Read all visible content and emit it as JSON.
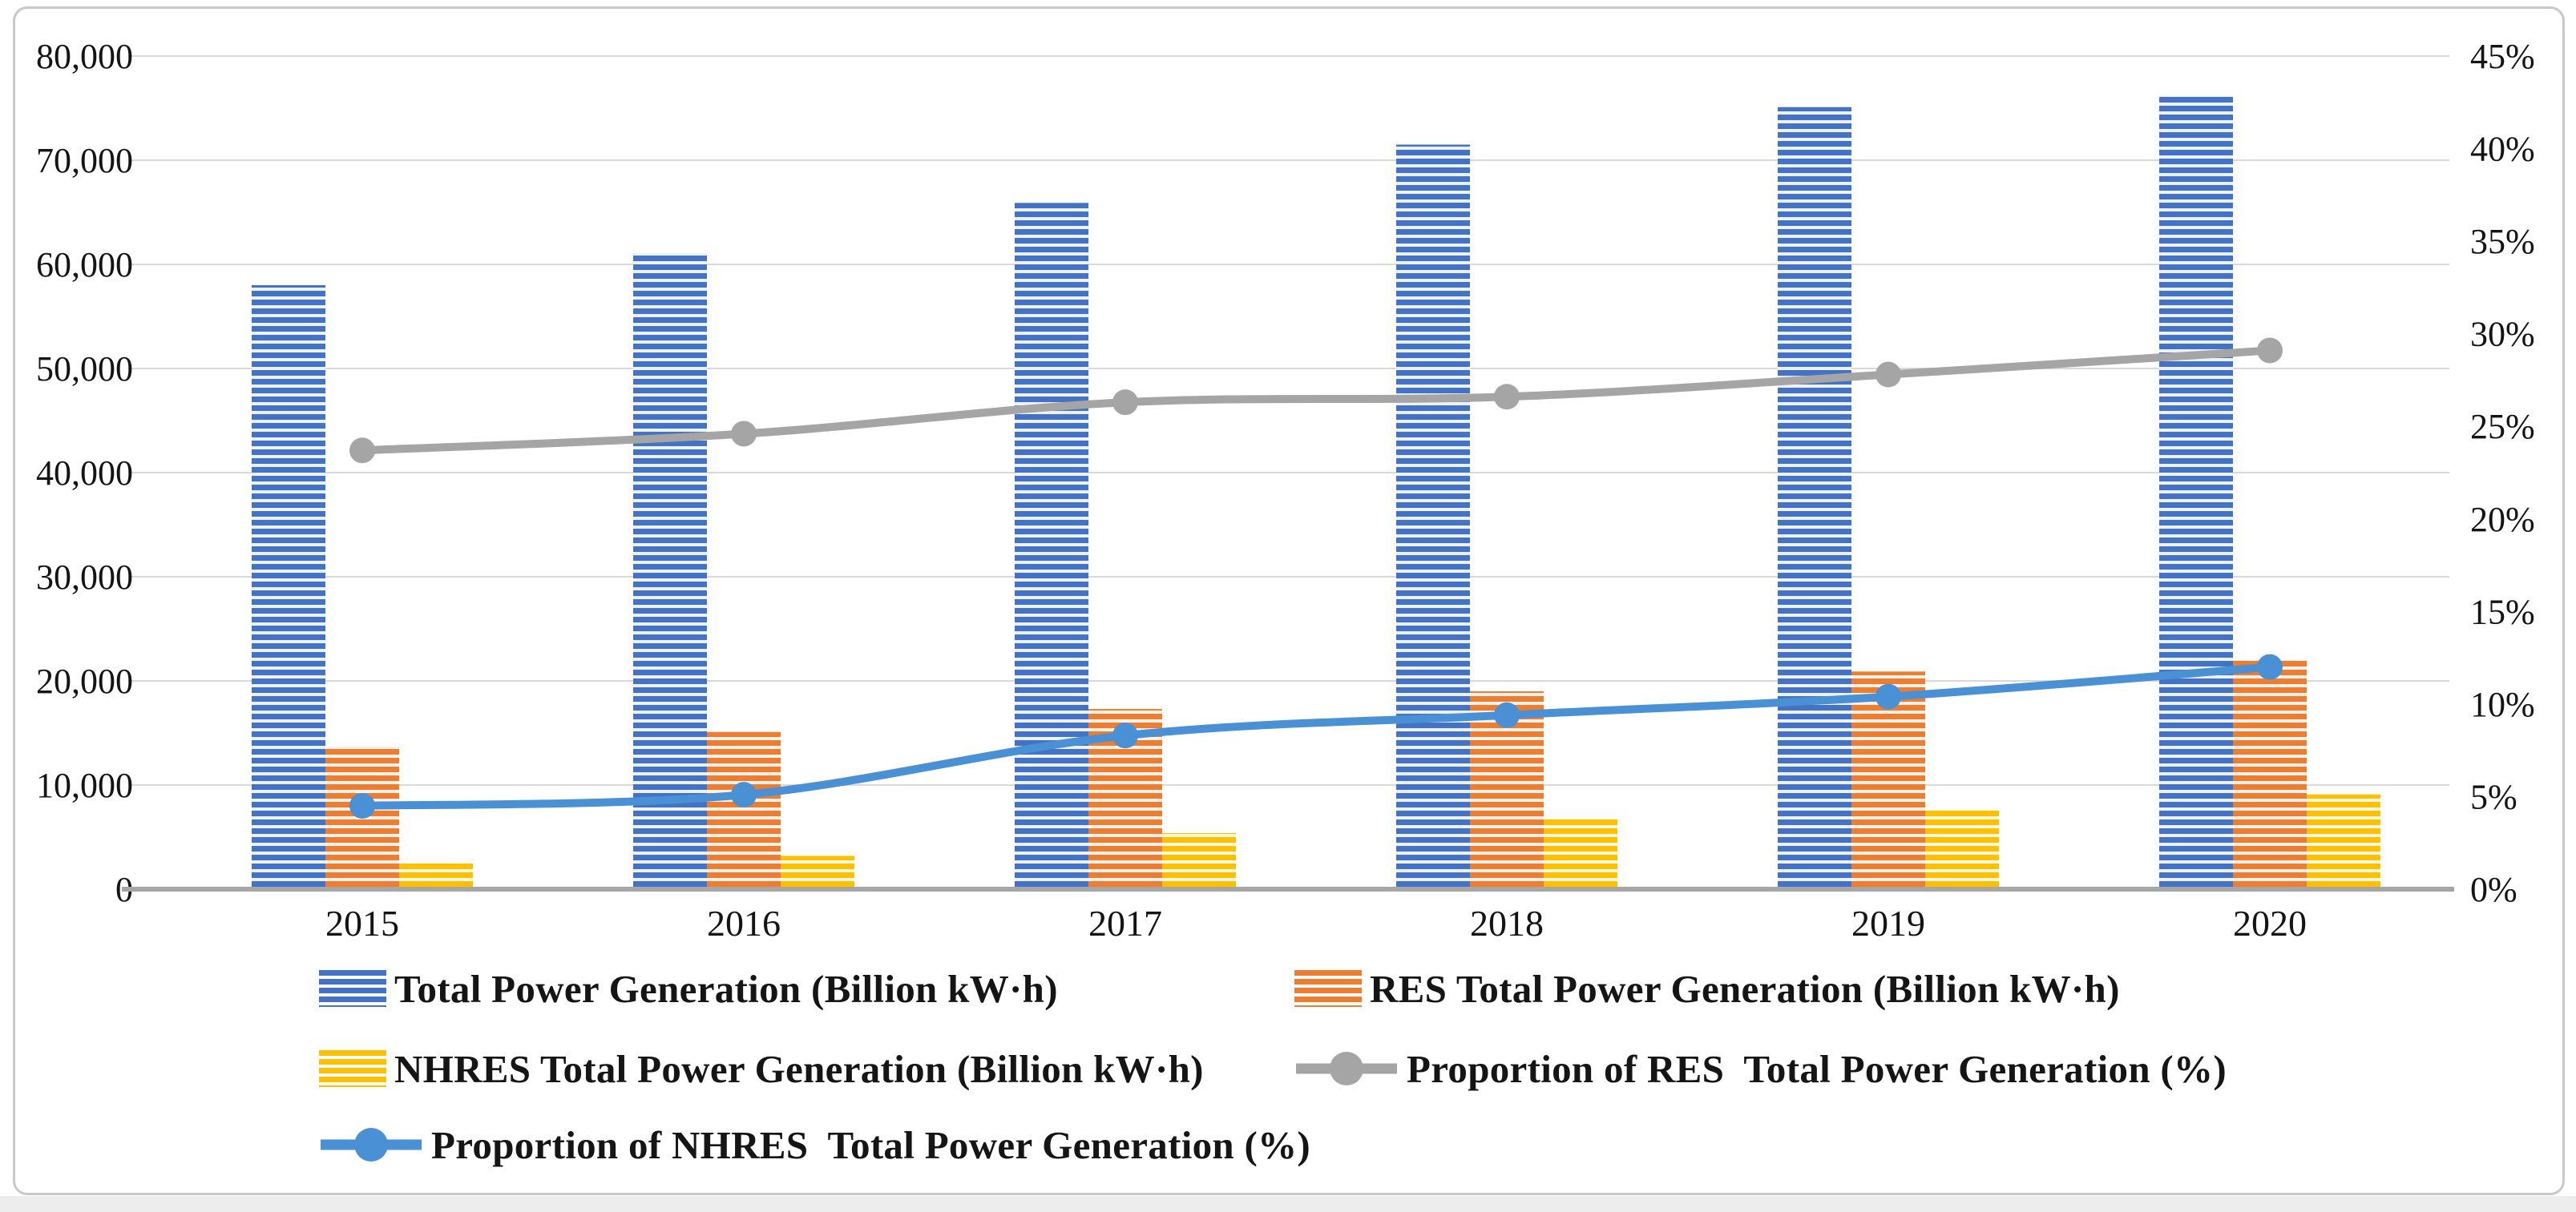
{
  "figure": {
    "background": "#FFFFFF",
    "border_color": "#C8C8C8",
    "bottom_strip_color": "#EDEDED"
  },
  "chart_data": {
    "type": "combo-bar-line",
    "categories": [
      "2015",
      "2016",
      "2017",
      "2018",
      "2019",
      "2020"
    ],
    "bar_series": [
      {
        "name": "Total Power Generation (Billion kW·h)",
        "color": "#4472C4",
        "axis": "left",
        "values": [
          58000,
          61100,
          65900,
          71500,
          75100,
          76200
        ]
      },
      {
        "name": "RES Total Power Generation (Billion kW·h)",
        "color": "#ED7D31",
        "axis": "left",
        "values": [
          13700,
          15100,
          17300,
          19000,
          20900,
          22000
        ]
      },
      {
        "name": "NHRES Total Power Generation (Billion kW·h)",
        "color": "#FFC000",
        "axis": "left",
        "values": [
          2500,
          3200,
          5400,
          6700,
          7700,
          9100
        ]
      }
    ],
    "line_series": [
      {
        "name": "Proportion of RES  Total Power Generation (%)",
        "color": "#A5A5A5",
        "axis": "right",
        "smooth": true,
        "values": [
          23.7,
          24.6,
          26.3,
          26.6,
          27.8,
          29.1
        ]
      },
      {
        "name": "Proportion of NHRES  Total Power Generation (%)",
        "color": "#4A90D4",
        "axis": "right",
        "smooth": true,
        "values": [
          4.5,
          5.1,
          8.3,
          9.4,
          10.4,
          12.0
        ]
      }
    ],
    "left_axis": {
      "min": 0,
      "max": 80000,
      "step": 10000,
      "tick_labels": [
        "0",
        "10,000",
        "20,000",
        "30,000",
        "40,000",
        "50,000",
        "60,000",
        "70,000",
        "80,000"
      ]
    },
    "right_axis": {
      "min": 0,
      "max": 45,
      "step": 5,
      "tick_labels": [
        "0%",
        "5%",
        "10%",
        "15%",
        "20%",
        "25%",
        "30%",
        "35%",
        "40%",
        "45%"
      ]
    },
    "grid": true,
    "gridline_color": "#D9D9D9",
    "baseline_color": "#A6A6A6",
    "bar_pattern": "horizontal-stripes",
    "legend_position": "bottom"
  }
}
